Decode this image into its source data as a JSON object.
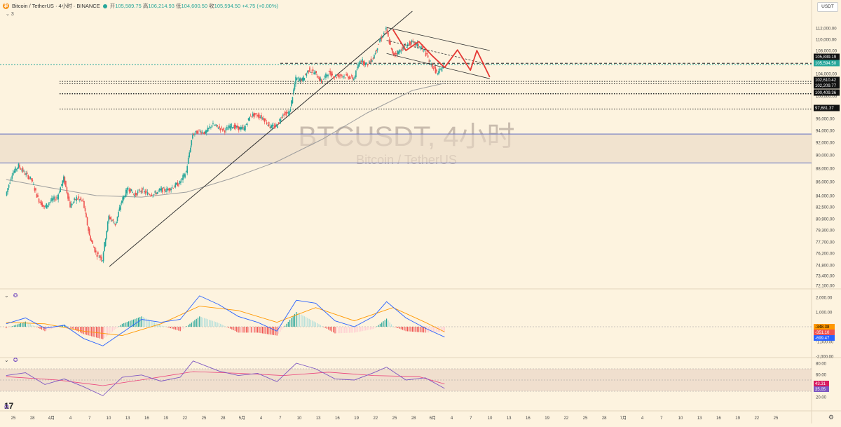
{
  "header": {
    "symbol_title": "Bitcoin / TetherUS · 4小时 · BINANCE",
    "ohlc": {
      "open_label": "开",
      "open": "105,589.75",
      "high_label": "高",
      "high": "106,214.93",
      "low_label": "低",
      "low": "104,600.50",
      "close_label": "收",
      "close": "105,594.50",
      "change": "+4.75 (+0.00%)"
    },
    "indicator_count": "3",
    "currency_button": "USDT"
  },
  "watermark": {
    "title": "BTCUSDT, 4小时",
    "subtitle": "Bitcoin / TetherUS"
  },
  "colors": {
    "background": "#fdf3df",
    "up": "#26a69a",
    "down": "#ef5350",
    "projection": "#e53935",
    "ma": "#9e9e9e",
    "zone_line": "#5c6bc0",
    "zone_fill": "#ead9c4",
    "macd": "#2962ff",
    "signal": "#ff9800",
    "rsi": "#7e57c2"
  },
  "chart_data": [
    {
      "type": "candlestick",
      "name": "BTCUSDT 4小时",
      "y_axis_labels": [
        "112,000.00",
        "110,000.00",
        "108,000.00",
        "106,000.00",
        "104,000.00",
        "102,000.00",
        "100,000.00",
        "98,000.00",
        "96,000.00",
        "94,000.00",
        "92,000.00",
        "90,000.00",
        "88,000.00",
        "86,000.00",
        "84,000.00",
        "82,500.00",
        "80,900.00",
        "79,300.00",
        "77,700.00",
        "76,200.00",
        "74,800.00",
        "73,400.00",
        "72,100.00"
      ],
      "x_tick_labels": [
        "25",
        "28",
        "4月",
        "4",
        "7",
        "10",
        "13",
        "16",
        "19",
        "22",
        "25",
        "28",
        "5月",
        "4",
        "7",
        "10",
        "13",
        "16",
        "19",
        "22",
        "25",
        "28",
        "6月",
        "4",
        "7",
        "10",
        "13",
        "16",
        "19",
        "22",
        "25",
        "28",
        "7月",
        "4",
        "7",
        "10",
        "13",
        "16",
        "19",
        "22",
        "25"
      ],
      "price_path": [
        {
          "date": "2025-03-24",
          "price": 84000
        },
        {
          "date": "2025-03-25",
          "price": 87200
        },
        {
          "date": "2025-03-26",
          "price": 88400
        },
        {
          "date": "2025-03-27",
          "price": 87200
        },
        {
          "date": "2025-03-28",
          "price": 86300
        },
        {
          "date": "2025-03-29",
          "price": 83600
        },
        {
          "date": "2025-03-30",
          "price": 82400
        },
        {
          "date": "2025-03-31",
          "price": 83300
        },
        {
          "date": "2025-04-01",
          "price": 83800
        },
        {
          "date": "2025-04-02",
          "price": 86500
        },
        {
          "date": "2025-04-03",
          "price": 82600
        },
        {
          "date": "2025-04-04",
          "price": 83700
        },
        {
          "date": "2025-04-05",
          "price": 83200
        },
        {
          "date": "2025-04-06",
          "price": 78500
        },
        {
          "date": "2025-04-07",
          "price": 76200
        },
        {
          "date": "2025-04-08",
          "price": 75500
        },
        {
          "date": "2025-04-09",
          "price": 81200
        },
        {
          "date": "2025-04-10",
          "price": 80100
        },
        {
          "date": "2025-04-11",
          "price": 83300
        },
        {
          "date": "2025-04-12",
          "price": 85100
        },
        {
          "date": "2025-04-13",
          "price": 84100
        },
        {
          "date": "2025-04-14",
          "price": 84800
        },
        {
          "date": "2025-04-15",
          "price": 84300
        },
        {
          "date": "2025-04-16",
          "price": 84200
        },
        {
          "date": "2025-04-17",
          "price": 84800
        },
        {
          "date": "2025-04-18",
          "price": 84800
        },
        {
          "date": "2025-04-19",
          "price": 85300
        },
        {
          "date": "2025-04-20",
          "price": 85800
        },
        {
          "date": "2025-04-21",
          "price": 87500
        },
        {
          "date": "2025-04-22",
          "price": 93300
        },
        {
          "date": "2025-04-23",
          "price": 93900
        },
        {
          "date": "2025-04-24",
          "price": 93600
        },
        {
          "date": "2025-04-25",
          "price": 95000
        },
        {
          "date": "2025-04-26",
          "price": 94500
        },
        {
          "date": "2025-04-27",
          "price": 94000
        },
        {
          "date": "2025-04-28",
          "price": 94800
        },
        {
          "date": "2025-04-29",
          "price": 94400
        },
        {
          "date": "2025-04-30",
          "price": 94300
        },
        {
          "date": "2025-05-01",
          "price": 96600
        },
        {
          "date": "2025-05-02",
          "price": 96600
        },
        {
          "date": "2025-05-03",
          "price": 96000
        },
        {
          "date": "2025-05-04",
          "price": 94600
        },
        {
          "date": "2025-05-05",
          "price": 94700
        },
        {
          "date": "2025-05-06",
          "price": 96800
        },
        {
          "date": "2025-05-07",
          "price": 97000
        },
        {
          "date": "2025-05-08",
          "price": 103100
        },
        {
          "date": "2025-05-09",
          "price": 102900
        },
        {
          "date": "2025-05-10",
          "price": 104700
        },
        {
          "date": "2025-05-11",
          "price": 104100
        },
        {
          "date": "2025-05-12",
          "price": 102500
        },
        {
          "date": "2025-05-13",
          "price": 104200
        },
        {
          "date": "2025-05-14",
          "price": 103500
        },
        {
          "date": "2025-05-15",
          "price": 103700
        },
        {
          "date": "2025-05-16",
          "price": 103500
        },
        {
          "date": "2025-05-17",
          "price": 103100
        },
        {
          "date": "2025-05-18",
          "price": 106500
        },
        {
          "date": "2025-05-19",
          "price": 105600
        },
        {
          "date": "2025-05-20",
          "price": 106800
        },
        {
          "date": "2025-05-21",
          "price": 109700
        },
        {
          "date": "2025-05-22",
          "price": 111700
        },
        {
          "date": "2025-05-23",
          "price": 107300
        },
        {
          "date": "2025-05-24",
          "price": 107800
        },
        {
          "date": "2025-05-25",
          "price": 108900
        },
        {
          "date": "2025-05-26",
          "price": 109400
        },
        {
          "date": "2025-05-27",
          "price": 108900
        },
        {
          "date": "2025-05-28",
          "price": 107800
        },
        {
          "date": "2025-05-29",
          "price": 105600
        },
        {
          "date": "2025-05-30",
          "price": 103900
        },
        {
          "date": "2025-05-31",
          "price": 105600
        }
      ],
      "moving_average": [
        {
          "date": "2025-03-24",
          "price": 86300
        },
        {
          "date": "2025-03-31",
          "price": 85100
        },
        {
          "date": "2025-04-07",
          "price": 84000
        },
        {
          "date": "2025-04-14",
          "price": 83800
        },
        {
          "date": "2025-04-21",
          "price": 84500
        },
        {
          "date": "2025-04-28",
          "price": 86500
        },
        {
          "date": "2025-05-05",
          "price": 89000
        },
        {
          "date": "2025-05-12",
          "price": 92500
        },
        {
          "date": "2025-05-19",
          "price": 97000
        },
        {
          "date": "2025-05-26",
          "price": 101000
        },
        {
          "date": "2025-05-31",
          "price": 102300
        }
      ],
      "horizontal_levels": [
        {
          "label": "105,839.19",
          "price": 105839.19,
          "style": "dashed"
        },
        {
          "label": "105,594.50",
          "price": 105594.5,
          "style": "current"
        },
        {
          "label": "102,610.42",
          "price": 102610.42,
          "style": "dotted"
        },
        {
          "label": "102,209.77",
          "price": 102209.77,
          "style": "dotted"
        },
        {
          "label": "100,409.36",
          "price": 100409.36,
          "style": "dotted"
        },
        {
          "label": "97,681.37",
          "price": 97681.37,
          "style": "dotted"
        }
      ],
      "zone": {
        "top": 93400,
        "bottom": 88800
      },
      "trendline": {
        "start": {
          "date": "2025-04-09",
          "price": 74600
        },
        "end": {
          "date": "2025-05-26",
          "price": 115000
        }
      },
      "channel": {
        "upper": {
          "start": {
            "date": "2025-05-22",
            "price": 112100
          },
          "end": {
            "date": "2025-06-07",
            "price": 108000
          }
        },
        "lower": {
          "start": {
            "date": "2025-05-22",
            "price": 107500
          },
          "end": {
            "date": "2025-06-07",
            "price": 103100
          }
        },
        "middle": {
          "start": {
            "date": "2025-05-22",
            "price": 109800
          },
          "end": {
            "date": "2025-06-07",
            "price": 105600
          }
        }
      },
      "projection": [
        {
          "date": "2025-05-23",
          "price": 111700
        },
        {
          "date": "2025-05-25",
          "price": 108000
        },
        {
          "date": "2025-05-27",
          "price": 109600
        },
        {
          "date": "2025-05-29",
          "price": 107200
        },
        {
          "date": "2025-05-31",
          "price": 105100
        },
        {
          "date": "2025-06-02",
          "price": 108100
        },
        {
          "date": "2025-06-04",
          "price": 104600
        },
        {
          "date": "2025-06-05",
          "price": 108000
        },
        {
          "date": "2025-06-07",
          "price": 103400
        }
      ]
    },
    {
      "type": "macd",
      "y_axis_labels": [
        "2,000.00",
        "1,000.00",
        "0.00",
        "-1,000.00",
        "-2,000.00"
      ],
      "value_badges": [
        "-348.38",
        "-351.10",
        "-699.47"
      ],
      "macd_line": [
        {
          "date": "2025-03-24",
          "value": 200
        },
        {
          "date": "2025-03-27",
          "value": 600
        },
        {
          "date": "2025-03-30",
          "value": -100
        },
        {
          "date": "2025-04-02",
          "value": 100
        },
        {
          "date": "2025-04-05",
          "value": -800
        },
        {
          "date": "2025-04-08",
          "value": -1300
        },
        {
          "date": "2025-04-11",
          "value": -400
        },
        {
          "date": "2025-04-14",
          "value": 500
        },
        {
          "date": "2025-04-17",
          "value": 300
        },
        {
          "date": "2025-04-20",
          "value": 500
        },
        {
          "date": "2025-04-23",
          "value": 2100
        },
        {
          "date": "2025-04-26",
          "value": 1500
        },
        {
          "date": "2025-04-29",
          "value": 700
        },
        {
          "date": "2025-05-02",
          "value": 300
        },
        {
          "date": "2025-05-05",
          "value": -300
        },
        {
          "date": "2025-05-08",
          "value": 1800
        },
        {
          "date": "2025-05-11",
          "value": 1600
        },
        {
          "date": "2025-05-14",
          "value": 400
        },
        {
          "date": "2025-05-17",
          "value": 0
        },
        {
          "date": "2025-05-20",
          "value": 700
        },
        {
          "date": "2025-05-22",
          "value": 1700
        },
        {
          "date": "2025-05-25",
          "value": 600
        },
        {
          "date": "2025-05-28",
          "value": -100
        },
        {
          "date": "2025-05-31",
          "value": -700
        }
      ],
      "signal_line": [
        {
          "date": "2025-03-24",
          "value": 300
        },
        {
          "date": "2025-03-30",
          "value": 200
        },
        {
          "date": "2025-04-05",
          "value": -300
        },
        {
          "date": "2025-04-11",
          "value": -600
        },
        {
          "date": "2025-04-17",
          "value": 200
        },
        {
          "date": "2025-04-23",
          "value": 1400
        },
        {
          "date": "2025-04-29",
          "value": 1100
        },
        {
          "date": "2025-05-05",
          "value": 300
        },
        {
          "date": "2025-05-11",
          "value": 1300
        },
        {
          "date": "2025-05-17",
          "value": 400
        },
        {
          "date": "2025-05-23",
          "value": 1300
        },
        {
          "date": "2025-05-28",
          "value": 300
        },
        {
          "date": "2025-05-31",
          "value": -350
        }
      ]
    },
    {
      "type": "rsi",
      "y_axis_labels": [
        "80.00",
        "60.00",
        "40.00",
        "20.00"
      ],
      "value_badges": [
        "43.31",
        "35.05"
      ],
      "band": [
        30,
        70
      ],
      "rsi_line": [
        {
          "date": "2025-03-24",
          "value": 58
        },
        {
          "date": "2025-03-27",
          "value": 63
        },
        {
          "date": "2025-03-30",
          "value": 42
        },
        {
          "date": "2025-04-02",
          "value": 52
        },
        {
          "date": "2025-04-05",
          "value": 38
        },
        {
          "date": "2025-04-08",
          "value": 22
        },
        {
          "date": "2025-04-11",
          "value": 55
        },
        {
          "date": "2025-04-14",
          "value": 59
        },
        {
          "date": "2025-04-17",
          "value": 48
        },
        {
          "date": "2025-04-20",
          "value": 55
        },
        {
          "date": "2025-04-22",
          "value": 84
        },
        {
          "date": "2025-04-26",
          "value": 66
        },
        {
          "date": "2025-04-29",
          "value": 58
        },
        {
          "date": "2025-05-02",
          "value": 62
        },
        {
          "date": "2025-05-05",
          "value": 47
        },
        {
          "date": "2025-05-08",
          "value": 80
        },
        {
          "date": "2025-05-11",
          "value": 70
        },
        {
          "date": "2025-05-14",
          "value": 52
        },
        {
          "date": "2025-05-17",
          "value": 50
        },
        {
          "date": "2025-05-20",
          "value": 63
        },
        {
          "date": "2025-05-22",
          "value": 73
        },
        {
          "date": "2025-05-25",
          "value": 50
        },
        {
          "date": "2025-05-28",
          "value": 54
        },
        {
          "date": "2025-05-31",
          "value": 35
        }
      ],
      "rsi_ma": [
        {
          "date": "2025-03-24",
          "value": 56
        },
        {
          "date": "2025-04-01",
          "value": 50
        },
        {
          "date": "2025-04-08",
          "value": 40
        },
        {
          "date": "2025-04-15",
          "value": 52
        },
        {
          "date": "2025-04-22",
          "value": 65
        },
        {
          "date": "2025-04-29",
          "value": 62
        },
        {
          "date": "2025-05-06",
          "value": 58
        },
        {
          "date": "2025-05-13",
          "value": 64
        },
        {
          "date": "2025-05-20",
          "value": 58
        },
        {
          "date": "2025-05-27",
          "value": 56
        },
        {
          "date": "2025-05-31",
          "value": 43
        }
      ]
    }
  ]
}
